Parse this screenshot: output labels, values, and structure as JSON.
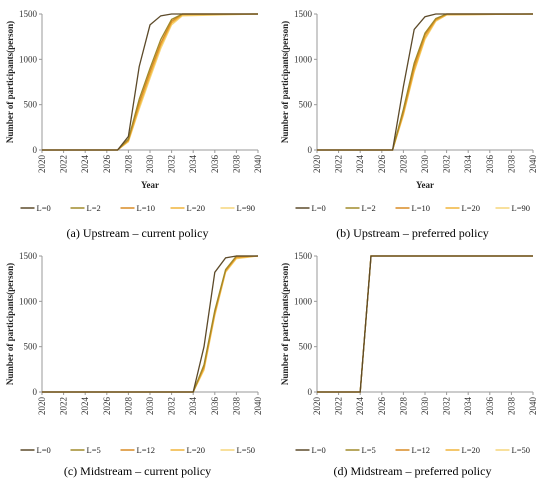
{
  "charts": [
    {
      "caption": "(a) Upstream – current policy",
      "chart_data": {
        "type": "line",
        "xlabel": "Year",
        "ylabel": "Number of participants(person)",
        "xlim": [
          2020,
          2040
        ],
        "ylim": [
          0,
          1500
        ],
        "xticks": [
          "2020",
          "2022",
          "2024",
          "2026",
          "2028",
          "2030",
          "2032",
          "2034",
          "2036",
          "2038",
          "2040"
        ],
        "yticks": [
          "0",
          "500",
          "1000",
          "1500"
        ],
        "legend_position": "bottom",
        "grid": false,
        "series": [
          {
            "name": "L=0",
            "color": "#5c4a2a",
            "x": [
              2020,
              2027,
              2028,
              2029,
              2030,
              2031,
              2032,
              2033,
              2040
            ],
            "y": [
              0,
              0,
              150,
              920,
              1380,
              1480,
              1500,
              1500,
              1500
            ]
          },
          {
            "name": "L=2",
            "color": "#a08a2a",
            "x": [
              2020,
              2027,
              2028,
              2029,
              2030,
              2031,
              2032,
              2033,
              2040
            ],
            "y": [
              0,
              0,
              120,
              560,
              900,
              1220,
              1440,
              1500,
              1500
            ]
          },
          {
            "name": "L=10",
            "color": "#d98a24",
            "x": [
              2020,
              2027,
              2028,
              2029,
              2030,
              2031,
              2032,
              2033,
              2040
            ],
            "y": [
              0,
              0,
              110,
              520,
              860,
              1180,
              1420,
              1500,
              1500
            ]
          },
          {
            "name": "L=20",
            "color": "#f0b43a",
            "x": [
              2020,
              2027,
              2028,
              2029,
              2030,
              2031,
              2032,
              2033,
              2040
            ],
            "y": [
              0,
              0,
              100,
              480,
              820,
              1150,
              1400,
              1490,
              1500
            ]
          },
          {
            "name": "L=90",
            "color": "#f6d57a",
            "x": [
              2020,
              2027,
              2028,
              2029,
              2030,
              2031,
              2032,
              2033,
              2040
            ],
            "y": [
              0,
              0,
              90,
              450,
              790,
              1120,
              1380,
              1480,
              1500
            ]
          }
        ]
      }
    },
    {
      "caption": "(b) Upstream – preferred policy",
      "chart_data": {
        "type": "line",
        "xlabel": "Year",
        "ylabel": "Number of participants(person)",
        "xlim": [
          2020,
          2040
        ],
        "ylim": [
          0,
          1500
        ],
        "xticks": [
          "2020",
          "2022",
          "2024",
          "2026",
          "2028",
          "2030",
          "2032",
          "2034",
          "2036",
          "2038",
          "2040"
        ],
        "yticks": [
          "0",
          "500",
          "1000",
          "1500"
        ],
        "legend_position": "bottom",
        "grid": false,
        "series": [
          {
            "name": "L=0",
            "color": "#5c4a2a",
            "x": [
              2020,
              2027,
              2028,
              2029,
              2030,
              2031,
              2032,
              2040
            ],
            "y": [
              0,
              0,
              700,
              1330,
              1470,
              1500,
              1500,
              1500
            ]
          },
          {
            "name": "L=2",
            "color": "#a08a2a",
            "x": [
              2020,
              2027,
              2028,
              2029,
              2030,
              2031,
              2032,
              2040
            ],
            "y": [
              0,
              0,
              450,
              960,
              1290,
              1450,
              1500,
              1500
            ]
          },
          {
            "name": "L=10",
            "color": "#d98a24",
            "x": [
              2020,
              2027,
              2028,
              2029,
              2030,
              2031,
              2032,
              2040
            ],
            "y": [
              0,
              0,
              420,
              920,
              1270,
              1440,
              1500,
              1500
            ]
          },
          {
            "name": "L=20",
            "color": "#f0b43a",
            "x": [
              2020,
              2027,
              2028,
              2029,
              2030,
              2031,
              2032,
              2040
            ],
            "y": [
              0,
              0,
              400,
              880,
              1240,
              1430,
              1490,
              1500
            ]
          },
          {
            "name": "L=90",
            "color": "#f6d57a",
            "x": [
              2020,
              2027,
              2028,
              2029,
              2030,
              2031,
              2032,
              2040
            ],
            "y": [
              0,
              0,
              380,
              860,
              1220,
              1420,
              1490,
              1500
            ]
          }
        ]
      }
    },
    {
      "caption": "(c) Midstream – current policy",
      "chart_data": {
        "type": "line",
        "xlabel": "",
        "ylabel": "Number of participants(person)",
        "xlim": [
          2020,
          2040
        ],
        "ylim": [
          0,
          1500
        ],
        "xticks": [
          "2020",
          "2022",
          "2024",
          "2026",
          "2028",
          "2030",
          "2032",
          "2034",
          "2036",
          "2038",
          "2040"
        ],
        "yticks": [
          "0",
          "500",
          "1000",
          "1500"
        ],
        "legend_position": "bottom",
        "grid": false,
        "series": [
          {
            "name": "L=0",
            "color": "#5c4a2a",
            "x": [
              2020,
              2034,
              2035,
              2036,
              2037,
              2038,
              2040
            ],
            "y": [
              0,
              0,
              500,
              1320,
              1480,
              1500,
              1500
            ]
          },
          {
            "name": "L=5",
            "color": "#a08a2a",
            "x": [
              2020,
              2034,
              2035,
              2036,
              2037,
              2038,
              2040
            ],
            "y": [
              0,
              0,
              300,
              900,
              1350,
              1500,
              1500
            ]
          },
          {
            "name": "L=12",
            "color": "#d98a24",
            "x": [
              2020,
              2034,
              2035,
              2036,
              2037,
              2038,
              2040
            ],
            "y": [
              0,
              0,
              280,
              880,
              1340,
              1490,
              1500
            ]
          },
          {
            "name": "L=20",
            "color": "#f0b43a",
            "x": [
              2020,
              2034,
              2035,
              2036,
              2037,
              2038,
              2040
            ],
            "y": [
              0,
              0,
              260,
              860,
              1330,
              1480,
              1500
            ]
          },
          {
            "name": "L=50",
            "color": "#f6d57a",
            "x": [
              2020,
              2034,
              2035,
              2036,
              2037,
              2038,
              2040
            ],
            "y": [
              0,
              0,
              240,
              840,
              1320,
              1470,
              1500
            ]
          }
        ]
      }
    },
    {
      "caption": "(d) Midstream – preferred policy",
      "chart_data": {
        "type": "line",
        "xlabel": "",
        "ylabel": "Number of participants(person)",
        "xlim": [
          2020,
          2040
        ],
        "ylim": [
          0,
          1500
        ],
        "xticks": [
          "2020",
          "2022",
          "2024",
          "2026",
          "2028",
          "2030",
          "2032",
          "2034",
          "2036",
          "2038",
          "2040"
        ],
        "yticks": [
          "0",
          "500",
          "1000",
          "1500"
        ],
        "legend_position": "bottom",
        "grid": false,
        "series": [
          {
            "name": "L=0",
            "color": "#5c4a2a",
            "x": [
              2020,
              2024,
              2025,
              2040
            ],
            "y": [
              0,
              0,
              1500,
              1500
            ]
          },
          {
            "name": "L=5",
            "color": "#a08a2a",
            "x": [
              2020,
              2024,
              2025,
              2040
            ],
            "y": [
              0,
              0,
              1500,
              1500
            ]
          },
          {
            "name": "L=12",
            "color": "#d98a24",
            "x": [
              2020,
              2024,
              2025,
              2040
            ],
            "y": [
              0,
              0,
              1500,
              1500
            ]
          },
          {
            "name": "L=20",
            "color": "#f0b43a",
            "x": [
              2020,
              2024,
              2025,
              2040
            ],
            "y": [
              0,
              0,
              1500,
              1500
            ]
          },
          {
            "name": "L=50",
            "color": "#f6d57a",
            "x": [
              2020,
              2024,
              2025,
              2040
            ],
            "y": [
              0,
              0,
              1500,
              1500
            ]
          }
        ]
      }
    }
  ]
}
